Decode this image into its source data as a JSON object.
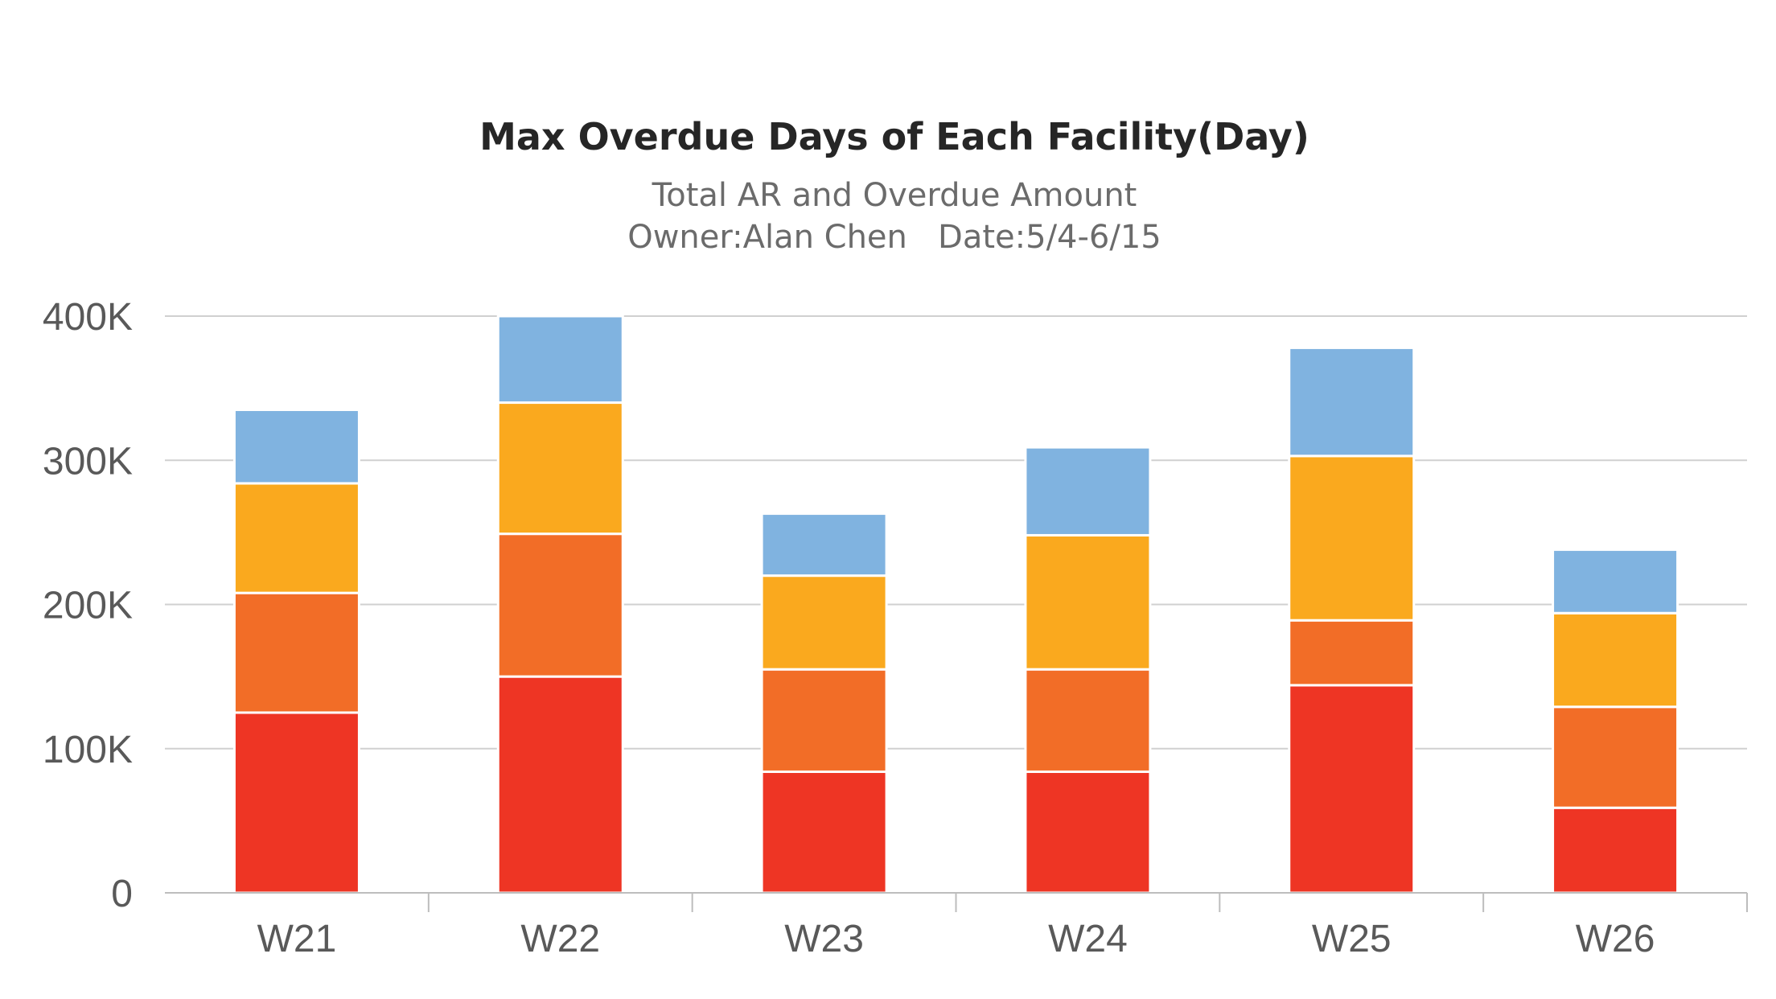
{
  "chart_data": {
    "type": "bar",
    "stacked": true,
    "title": "Max Overdue Days of Each Facility(Day)",
    "subtitle_lines": [
      "Total AR and Overdue Amount",
      "Owner:Alan Chen   Date:5/4-6/15"
    ],
    "xlabel": "",
    "ylabel": "",
    "categories": [
      "W21",
      "W22",
      "W23",
      "W24",
      "W25",
      "W26"
    ],
    "ylim": [
      0,
      400000
    ],
    "yticks": [
      0,
      100000,
      200000,
      300000,
      400000
    ],
    "ytick_labels": [
      "0",
      "100K",
      "200K",
      "300K",
      "400K"
    ],
    "grid": true,
    "legend": "none",
    "series": [
      {
        "color": "#ee3524",
        "values": [
          125000,
          150000,
          84000,
          84000,
          144000,
          59000
        ]
      },
      {
        "color": "#f26d27",
        "values": [
          83000,
          99000,
          71000,
          71000,
          45000,
          70000
        ]
      },
      {
        "color": "#faa91e",
        "values": [
          76000,
          91000,
          65000,
          93000,
          114000,
          65000
        ]
      },
      {
        "color": "#80b3e0",
        "values": [
          51000,
          60000,
          43000,
          61000,
          75000,
          44000
        ]
      }
    ]
  }
}
